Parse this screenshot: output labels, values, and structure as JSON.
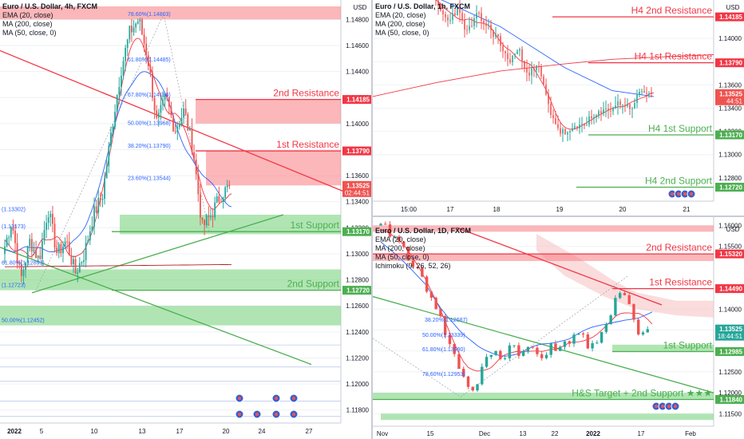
{
  "chart_data": [
    {
      "id": "h4",
      "type": "candlestick",
      "title": "Euro / U.S. Dollar, 4h, FXCM",
      "indicators": [
        "EMA (20, close)",
        "MA (200, close)",
        "MA (50, close, 0)"
      ],
      "y_ticks": [
        "1.14800",
        "1.14600",
        "1.14400",
        "1.14200",
        "1.14000",
        "1.13800",
        "1.13600",
        "1.13400",
        "1.13200",
        "1.13000",
        "1.12800",
        "1.12600",
        "1.12400",
        "1.12200",
        "1.12000",
        "1.11800"
      ],
      "x_ticks": [
        "2022",
        "5",
        "10",
        "13",
        "17",
        "20",
        "24",
        "27"
      ],
      "currency_label": "USD",
      "current_price": "1.13525",
      "countdown": "02:44:51",
      "levels": [
        {
          "label": "2nd Resistance",
          "price": "1.14185",
          "color": "#f23645"
        },
        {
          "label": "1st Resistance",
          "price": "1.13790",
          "color": "#f23645"
        },
        {
          "label": "1st Support",
          "price": "1.13170",
          "color": "#4caf50"
        },
        {
          "label": "2nd Support",
          "price": "1.12720",
          "color": "#4caf50"
        }
      ],
      "fib_labels": [
        "78.60%(1.14803)",
        "61.80%(1.14485)",
        "67.80%(1.14186)",
        "50.00%(1.13968)",
        "38.20%(1.13790)",
        "23.60%(1.13544)",
        "(1.13302)",
        "(1.13173)",
        "61.80%(1.12893)",
        "(1.12723)",
        "50.00%(1.12452)"
      ]
    },
    {
      "id": "h1",
      "type": "candlestick",
      "title": "Euro / U.S. Dollar, 1h, FXCM",
      "indicators": [
        "EMA (20, close)",
        "MA (200, close)",
        "MA (50, close, 0)"
      ],
      "x_ticks": [
        "15:00",
        "17",
        "18",
        "19",
        "20",
        "21"
      ],
      "currency_label": "USD",
      "current_price": "1.13525",
      "countdown": "44:51",
      "levels": [
        {
          "label": "H4 2nd Resistance",
          "price": "1.14185",
          "color": "#f23645"
        },
        {
          "label": "H4 1st Resistance",
          "price": "1.13790",
          "color": "#f23645"
        },
        {
          "label": "H4 1st Support",
          "price": "1.13170",
          "color": "#4caf50"
        },
        {
          "label": "H4 2nd Support",
          "price": "1.12720",
          "color": "#4caf50"
        }
      ],
      "y_ticks": [
        "1.14000",
        "1.13800",
        "1.13600",
        "1.13400",
        "1.13200",
        "1.13000",
        "1.12800"
      ]
    },
    {
      "id": "d1",
      "type": "candlestick",
      "title": "Euro / U.S. Dollar, 1D, FXCM",
      "indicators": [
        "EMA (20, close)",
        "MA (200, close)",
        "MA (50, close, 0)",
        "Ichimoku (9, 26, 52, 26)"
      ],
      "x_ticks": [
        "Nov",
        "15",
        "Dec",
        "13",
        "22",
        "2022",
        "17",
        "Feb"
      ],
      "currency_label": "USD",
      "current_price": "1.13525",
      "countdown": "18:44:51",
      "levels": [
        {
          "label": "2nd Resistance",
          "price": "1.15320",
          "color": "#f23645"
        },
        {
          "label": "1st Resistance",
          "price": "1.14490",
          "color": "#f23645"
        },
        {
          "label": "1st Support",
          "price": "1.12985",
          "color": "#4caf50"
        },
        {
          "label": "H&S Target + 2nd Support ★★★",
          "price": "1.11840",
          "color": "#4caf50"
        }
      ],
      "y_ticks": [
        "1.16000",
        "1.15500",
        "1.14500",
        "1.14000",
        "1.13500",
        "1.13000",
        "1.12500",
        "1.12000",
        "1.11500"
      ],
      "fib_labels": [
        "38.20%(1.12687)",
        "50.00%(1.13339)",
        "61.80%(1.13990)",
        "78.60%(1.12953)"
      ]
    }
  ]
}
